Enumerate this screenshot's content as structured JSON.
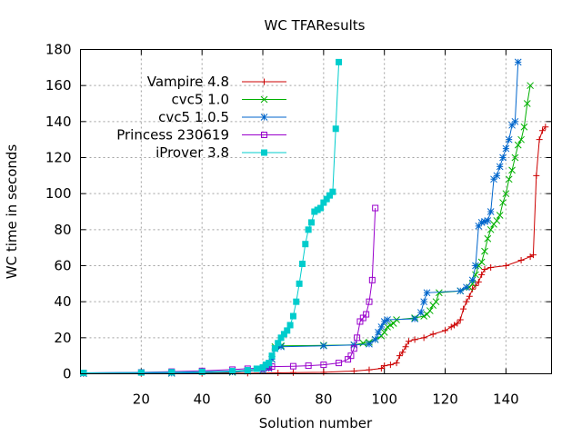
{
  "chart_data": {
    "type": "line",
    "title": "WC TFAResults",
    "xlabel": "Solution number",
    "ylabel": "WC time in seconds",
    "xlim": [
      0,
      155
    ],
    "ylim": [
      0,
      180
    ],
    "xticks": [
      20,
      40,
      60,
      80,
      100,
      120,
      140
    ],
    "yticks": [
      0,
      20,
      40,
      60,
      80,
      100,
      120,
      140,
      160,
      180
    ],
    "grid": true,
    "legend_position": "top-left",
    "series": [
      {
        "name": "Vampire 4.8",
        "color": "#cc0000",
        "marker": "plus",
        "points": [
          [
            1,
            0.1
          ],
          [
            20,
            0.15
          ],
          [
            40,
            0.2
          ],
          [
            55,
            0.3
          ],
          [
            65,
            0.5
          ],
          [
            70,
            0.6
          ],
          [
            80,
            0.8
          ],
          [
            90,
            1.5
          ],
          [
            95,
            2.2
          ],
          [
            99,
            3
          ],
          [
            100,
            4.5
          ],
          [
            102,
            5
          ],
          [
            104,
            6
          ],
          [
            105,
            10
          ],
          [
            106,
            12
          ],
          [
            107,
            15
          ],
          [
            108,
            18
          ],
          [
            110,
            19
          ],
          [
            113,
            20
          ],
          [
            116,
            22
          ],
          [
            120,
            24
          ],
          [
            122,
            26
          ],
          [
            123,
            27
          ],
          [
            124,
            28
          ],
          [
            125,
            30
          ],
          [
            126,
            36
          ],
          [
            127,
            40
          ],
          [
            128,
            43
          ],
          [
            129,
            47
          ],
          [
            130,
            49
          ],
          [
            131,
            51
          ],
          [
            132,
            55
          ],
          [
            133,
            58
          ],
          [
            135,
            59
          ],
          [
            140,
            60
          ],
          [
            145,
            63
          ],
          [
            148,
            65
          ],
          [
            149,
            66
          ],
          [
            150,
            110
          ],
          [
            151,
            130
          ],
          [
            152,
            135
          ],
          [
            153,
            137
          ]
        ]
      },
      {
        "name": "cvc5 1.0",
        "color": "#00b000",
        "marker": "cross",
        "points": [
          [
            1,
            0.2
          ],
          [
            30,
            0.3
          ],
          [
            50,
            0.8
          ],
          [
            55,
            1.5
          ],
          [
            60,
            2
          ],
          [
            62,
            4
          ],
          [
            63,
            8
          ],
          [
            64,
            15
          ],
          [
            66,
            15.5
          ],
          [
            80,
            15.8
          ],
          [
            90,
            16
          ],
          [
            93,
            17
          ],
          [
            95,
            17.5
          ],
          [
            97,
            19
          ],
          [
            99,
            21
          ],
          [
            100,
            23
          ],
          [
            101,
            26
          ],
          [
            102,
            27
          ],
          [
            103,
            28
          ],
          [
            104,
            30
          ],
          [
            110,
            31
          ],
          [
            113,
            32
          ],
          [
            114,
            33
          ],
          [
            115,
            35
          ],
          [
            116,
            38
          ],
          [
            117,
            40
          ],
          [
            118,
            45
          ],
          [
            125,
            46
          ],
          [
            128,
            48
          ],
          [
            129,
            50
          ],
          [
            130,
            55
          ],
          [
            131,
            60
          ],
          [
            132,
            62
          ],
          [
            133,
            68
          ],
          [
            134,
            75
          ],
          [
            135,
            80
          ],
          [
            136,
            83
          ],
          [
            137,
            85
          ],
          [
            138,
            88
          ],
          [
            139,
            95
          ],
          [
            140,
            100
          ],
          [
            141,
            108
          ],
          [
            142,
            113
          ],
          [
            143,
            120
          ],
          [
            144,
            127
          ],
          [
            145,
            130
          ],
          [
            146,
            137
          ],
          [
            147,
            150
          ],
          [
            148,
            160
          ]
        ]
      },
      {
        "name": "cvc5 1.0.5",
        "color": "#0066cc",
        "marker": "star",
        "points": [
          [
            1,
            0.2
          ],
          [
            30,
            0.3
          ],
          [
            50,
            1
          ],
          [
            55,
            1.5
          ],
          [
            60,
            2
          ],
          [
            62,
            3
          ],
          [
            63,
            8
          ],
          [
            64,
            14
          ],
          [
            66,
            15
          ],
          [
            80,
            15.5
          ],
          [
            90,
            16
          ],
          [
            95,
            16.5
          ],
          [
            97,
            19
          ],
          [
            98,
            23
          ],
          [
            99,
            26
          ],
          [
            100,
            29
          ],
          [
            101,
            30
          ],
          [
            110,
            30.5
          ],
          [
            112,
            34
          ],
          [
            113,
            40
          ],
          [
            114,
            45
          ],
          [
            125,
            46
          ],
          [
            127,
            48
          ],
          [
            129,
            52
          ],
          [
            130,
            60
          ],
          [
            131,
            82
          ],
          [
            132,
            84
          ],
          [
            133,
            84.5
          ],
          [
            134,
            85
          ],
          [
            135,
            90
          ],
          [
            136,
            108
          ],
          [
            137,
            110
          ],
          [
            138,
            115
          ],
          [
            139,
            120
          ],
          [
            140,
            125
          ],
          [
            141,
            130
          ],
          [
            142,
            138
          ],
          [
            143,
            140
          ],
          [
            144,
            173
          ]
        ]
      },
      {
        "name": "Princess 230619",
        "color": "#9900cc",
        "marker": "square-open",
        "points": [
          [
            1,
            0.5
          ],
          [
            20,
            0.8
          ],
          [
            30,
            1.2
          ],
          [
            40,
            1.6
          ],
          [
            50,
            2.3
          ],
          [
            55,
            2.8
          ],
          [
            60,
            3.2
          ],
          [
            62,
            3.5
          ],
          [
            63,
            4
          ],
          [
            70,
            4.2
          ],
          [
            75,
            4.5
          ],
          [
            80,
            5
          ],
          [
            85,
            6
          ],
          [
            88,
            8
          ],
          [
            89,
            10
          ],
          [
            90,
            14
          ],
          [
            91,
            20
          ],
          [
            92,
            29
          ],
          [
            93,
            31
          ],
          [
            94,
            33
          ],
          [
            95,
            40
          ],
          [
            96,
            52
          ],
          [
            97,
            92
          ]
        ]
      },
      {
        "name": "iProver 3.8",
        "color": "#00cccc",
        "marker": "square-filled",
        "points": [
          [
            1,
            0.5
          ],
          [
            20,
            0.7
          ],
          [
            30,
            0.9
          ],
          [
            40,
            1.1
          ],
          [
            50,
            1.5
          ],
          [
            55,
            2
          ],
          [
            58,
            2.8
          ],
          [
            60,
            3.5
          ],
          [
            61,
            5
          ],
          [
            62,
            6
          ],
          [
            63,
            10
          ],
          [
            64,
            14
          ],
          [
            65,
            17
          ],
          [
            66,
            20
          ],
          [
            67,
            22
          ],
          [
            68,
            24
          ],
          [
            69,
            27
          ],
          [
            70,
            32
          ],
          [
            71,
            40
          ],
          [
            72,
            50
          ],
          [
            73,
            61
          ],
          [
            74,
            72
          ],
          [
            75,
            80
          ],
          [
            76,
            84
          ],
          [
            77,
            90
          ],
          [
            78,
            91
          ],
          [
            79,
            92
          ],
          [
            80,
            95
          ],
          [
            81,
            97
          ],
          [
            82,
            99
          ],
          [
            83,
            101
          ],
          [
            84,
            136
          ],
          [
            85,
            173
          ]
        ]
      }
    ]
  }
}
